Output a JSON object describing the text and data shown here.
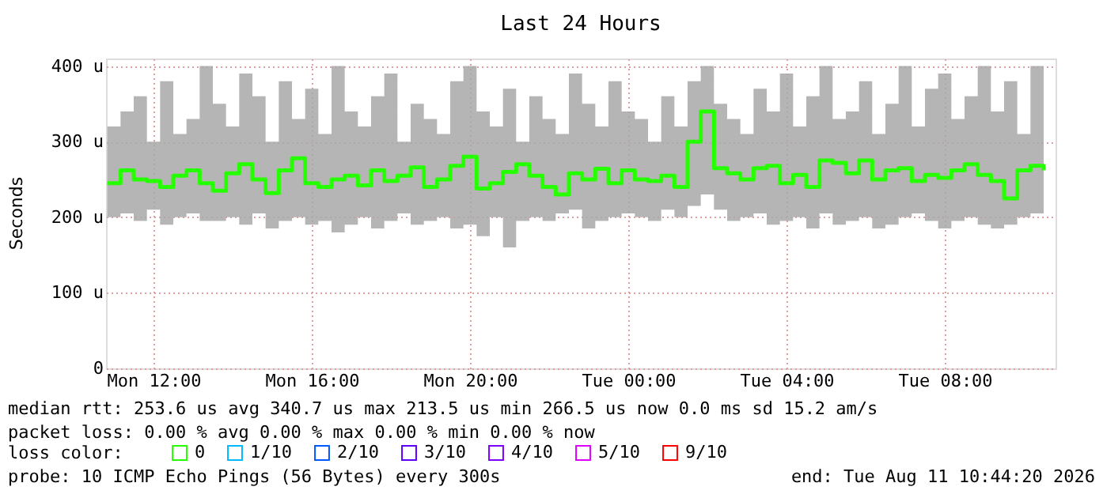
{
  "chart_data": {
    "type": "step",
    "title": "Last 24 Hours",
    "ylabel": "Seconds",
    "legend_title": "loss color:",
    "x": [
      "2026-08-10T10:50",
      "2026-08-10T11:10",
      "2026-08-10T11:30",
      "2026-08-10T11:50",
      "2026-08-10T12:10",
      "2026-08-10T12:30",
      "2026-08-10T12:50",
      "2026-08-10T13:10",
      "2026-08-10T13:30",
      "2026-08-10T13:50",
      "2026-08-10T14:10",
      "2026-08-10T14:30",
      "2026-08-10T14:50",
      "2026-08-10T15:10",
      "2026-08-10T15:30",
      "2026-08-10T15:50",
      "2026-08-10T16:10",
      "2026-08-10T16:30",
      "2026-08-10T16:50",
      "2026-08-10T17:10",
      "2026-08-10T17:30",
      "2026-08-10T17:50",
      "2026-08-10T18:10",
      "2026-08-10T18:30",
      "2026-08-10T18:50",
      "2026-08-10T19:10",
      "2026-08-10T19:30",
      "2026-08-10T19:50",
      "2026-08-10T20:10",
      "2026-08-10T20:30",
      "2026-08-10T20:50",
      "2026-08-10T21:10",
      "2026-08-10T21:30",
      "2026-08-10T21:50",
      "2026-08-10T22:10",
      "2026-08-10T22:30",
      "2026-08-10T22:50",
      "2026-08-10T23:10",
      "2026-08-10T23:30",
      "2026-08-10T23:50",
      "2026-08-11T00:10",
      "2026-08-11T00:30",
      "2026-08-11T00:50",
      "2026-08-11T01:10",
      "2026-08-11T01:30",
      "2026-08-11T01:50",
      "2026-08-11T02:10",
      "2026-08-11T02:30",
      "2026-08-11T02:50",
      "2026-08-11T03:10",
      "2026-08-11T03:30",
      "2026-08-11T03:50",
      "2026-08-11T04:10",
      "2026-08-11T04:30",
      "2026-08-11T04:50",
      "2026-08-11T05:10",
      "2026-08-11T05:30",
      "2026-08-11T05:50",
      "2026-08-11T06:10",
      "2026-08-11T06:30",
      "2026-08-11T06:50",
      "2026-08-11T07:10",
      "2026-08-11T07:30",
      "2026-08-11T07:50",
      "2026-08-11T08:10",
      "2026-08-11T08:30",
      "2026-08-11T08:50",
      "2026-08-11T09:10",
      "2026-08-11T09:30",
      "2026-08-11T09:50",
      "2026-08-11T10:10",
      "2026-08-11T10:30"
    ],
    "series": [
      {
        "name": "0",
        "color": "#26ff00",
        "values": [
          245,
          262,
          250,
          248,
          240,
          255,
          262,
          245,
          235,
          258,
          270,
          250,
          232,
          262,
          278,
          245,
          240,
          250,
          255,
          242,
          262,
          248,
          255,
          266,
          240,
          250,
          268,
          280,
          238,
          245,
          260,
          270,
          255,
          240,
          230,
          258,
          250,
          264,
          245,
          262,
          250,
          248,
          255,
          240,
          300,
          340,
          265,
          258,
          250,
          265,
          268,
          245,
          256,
          240,
          275,
          272,
          258,
          275,
          250,
          262,
          265,
          248,
          256,
          252,
          262,
          270,
          256,
          248,
          225,
          262,
          268,
          262
        ],
        "lower": [
          200,
          205,
          195,
          210,
          190,
          200,
          205,
          195,
          195,
          200,
          190,
          205,
          185,
          195,
          200,
          190,
          195,
          180,
          190,
          200,
          185,
          195,
          205,
          190,
          195,
          200,
          185,
          190,
          175,
          200,
          160,
          195,
          200,
          195,
          205,
          210,
          185,
          195,
          200,
          205,
          200,
          195,
          210,
          200,
          215,
          230,
          210,
          195,
          200,
          205,
          190,
          195,
          200,
          185,
          205,
          190,
          195,
          200,
          185,
          190,
          200,
          205,
          195,
          185,
          195,
          200,
          190,
          185,
          190,
          200,
          205,
          210
        ],
        "upper": [
          320,
          340,
          360,
          300,
          380,
          310,
          330,
          400,
          350,
          320,
          390,
          360,
          300,
          380,
          330,
          370,
          310,
          400,
          340,
          320,
          360,
          390,
          300,
          350,
          330,
          310,
          380,
          400,
          340,
          320,
          370,
          300,
          360,
          330,
          310,
          390,
          350,
          320,
          380,
          340,
          330,
          300,
          360,
          320,
          380,
          400,
          350,
          330,
          310,
          370,
          340,
          390,
          320,
          360,
          400,
          330,
          340,
          380,
          310,
          350,
          400,
          320,
          370,
          390,
          330,
          360,
          400,
          340,
          380,
          310,
          400,
          340
        ]
      },
      {
        "name": "1/10",
        "color": "#00b8ff",
        "values": [
          null,
          null,
          null,
          null,
          null,
          null,
          null,
          null,
          null,
          null,
          null,
          null,
          null,
          null,
          null,
          null,
          null,
          null,
          null,
          null,
          null,
          null,
          null,
          null,
          null,
          null,
          null,
          null,
          null,
          null,
          null,
          null,
          null,
          null,
          null,
          null,
          null,
          null,
          null,
          null,
          null,
          null,
          null,
          null,
          null,
          null,
          null,
          null,
          null,
          null,
          null,
          null,
          null,
          null,
          null,
          null,
          null,
          null,
          null,
          null,
          null,
          null,
          null,
          null,
          null,
          null,
          null,
          null,
          null,
          null,
          null,
          null
        ]
      },
      {
        "name": "2/10",
        "color": "#0059ff",
        "values": [
          null,
          null,
          null,
          null,
          null,
          null,
          null,
          null,
          null,
          null,
          null,
          null,
          null,
          null,
          null,
          null,
          null,
          null,
          null,
          null,
          null,
          null,
          null,
          null,
          null,
          null,
          null,
          null,
          null,
          null,
          null,
          null,
          null,
          null,
          null,
          null,
          null,
          null,
          null,
          null,
          null,
          null,
          null,
          null,
          null,
          null,
          null,
          null,
          null,
          null,
          null,
          null,
          null,
          null,
          null,
          null,
          null,
          null,
          null,
          null,
          null,
          null,
          null,
          null,
          null,
          null,
          null,
          null,
          null,
          null,
          null,
          null
        ]
      },
      {
        "name": "3/10",
        "color": "#5e00ff",
        "values": [
          null,
          null,
          null,
          null,
          null,
          null,
          null,
          null,
          null,
          null,
          null,
          null,
          null,
          null,
          null,
          null,
          null,
          null,
          null,
          null,
          null,
          null,
          null,
          null,
          null,
          null,
          null,
          null,
          null,
          null,
          null,
          null,
          null,
          null,
          null,
          null,
          null,
          null,
          null,
          null,
          null,
          null,
          null,
          null,
          null,
          null,
          null,
          null,
          null,
          null,
          null,
          null,
          null,
          null,
          null,
          null,
          null,
          null,
          null,
          null,
          null,
          null,
          null,
          null,
          null,
          null,
          null,
          null,
          null,
          null,
          null,
          null
        ]
      },
      {
        "name": "4/10",
        "color": "#7e00ff",
        "values": [
          null,
          null,
          null,
          null,
          null,
          null,
          null,
          null,
          null,
          null,
          null,
          null,
          null,
          null,
          null,
          null,
          null,
          null,
          null,
          null,
          null,
          null,
          null,
          null,
          null,
          null,
          null,
          null,
          null,
          null,
          null,
          null,
          null,
          null,
          null,
          null,
          null,
          null,
          null,
          null,
          null,
          null,
          null,
          null,
          null,
          null,
          null,
          null,
          null,
          null,
          null,
          null,
          null,
          null,
          null,
          null,
          null,
          null,
          null,
          null,
          null,
          null,
          null,
          null,
          null,
          null,
          null,
          null,
          null,
          null,
          null,
          null
        ]
      },
      {
        "name": "5/10",
        "color": "#dd00ff",
        "values": [
          null,
          null,
          null,
          null,
          null,
          null,
          null,
          null,
          null,
          null,
          null,
          null,
          null,
          null,
          null,
          null,
          null,
          null,
          null,
          null,
          null,
          null,
          null,
          null,
          null,
          null,
          null,
          null,
          null,
          null,
          null,
          null,
          null,
          null,
          null,
          null,
          null,
          null,
          null,
          null,
          null,
          null,
          null,
          null,
          null,
          null,
          null,
          null,
          null,
          null,
          null,
          null,
          null,
          null,
          null,
          null,
          null,
          null,
          null,
          null,
          null,
          null,
          null,
          null,
          null,
          null,
          null,
          null,
          null,
          null,
          null,
          null
        ]
      },
      {
        "name": "9/10",
        "color": "#ff0000",
        "values": [
          null,
          null,
          null,
          null,
          null,
          null,
          null,
          null,
          null,
          null,
          null,
          null,
          null,
          null,
          null,
          null,
          null,
          null,
          null,
          null,
          null,
          null,
          null,
          null,
          null,
          null,
          null,
          null,
          null,
          null,
          null,
          null,
          null,
          null,
          null,
          null,
          null,
          null,
          null,
          null,
          null,
          null,
          null,
          null,
          null,
          null,
          null,
          null,
          null,
          null,
          null,
          null,
          null,
          null,
          null,
          null,
          null,
          null,
          null,
          null,
          null,
          null,
          null,
          null,
          null,
          null,
          null,
          null,
          null,
          null,
          null,
          null
        ]
      }
    ],
    "xlim": [
      "2026-08-10T10:48",
      "2026-08-11T10:48"
    ],
    "xticks": [
      {
        "value": "2026-08-10T12:00",
        "label": "Mon 12:00"
      },
      {
        "value": "2026-08-10T16:00",
        "label": "Mon 16:00"
      },
      {
        "value": "2026-08-10T20:00",
        "label": "Mon 20:00"
      },
      {
        "value": "2026-08-11T00:00",
        "label": "Tue 00:00"
      },
      {
        "value": "2026-08-11T04:00",
        "label": "Tue 04:00"
      },
      {
        "value": "2026-08-11T08:00",
        "label": "Tue 08:00"
      }
    ],
    "ylim": [
      0,
      410
    ],
    "yticks": [
      0,
      {
        "value": 100,
        "label": "100 u"
      },
      {
        "value": 200,
        "label": "200 u"
      },
      {
        "value": 300,
        "label": "300 u"
      },
      {
        "value": 400,
        "label": "400 u"
      }
    ],
    "grid": true,
    "legend": "bottom",
    "marker": "none",
    "line_style": "solid",
    "annotations": [
      "median rtt:  253.6 us avg  340.7 us max  213.5 us min  266.5 us now  0.0 ms sd  15.2   am/s",
      "packet loss: 0.00 % avg  0.00 % max  0.00 % min  0.00 % now",
      "probe:       10 ICMP Echo Pings (56 Bytes) every 300s",
      "end: Tue Aug 11 10:44:20 2026"
    ]
  }
}
